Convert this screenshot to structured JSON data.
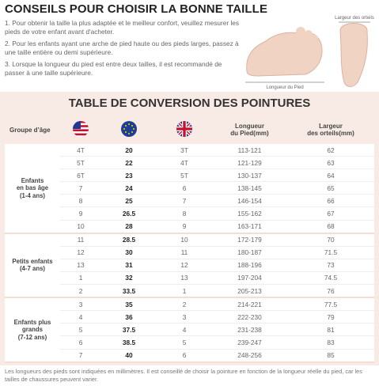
{
  "header": {
    "title": "CONSEILS POUR CHOISIR LA BONNE TAILLE",
    "tips": [
      "1. Pour obtenir la taille la plus adaptée et le meilleur confort, veuillez mesurer les pieds de votre enfant avant d'acheter.",
      "2. Pour les enfants ayant une arche de pied haute ou des pieds larges, passez à une taille entière ou demi supérieure.",
      "3. Lorsque la longueur du pied est entre deux tailles, il est recommandé de passer à une taille supérieure."
    ],
    "diagram": {
      "length_label": "Longueur du Pied",
      "width_label": "Largeur des orteils"
    }
  },
  "table": {
    "title": "TABLE DE CONVERSION DES POINTURES",
    "headers": {
      "group": "Groupe d’âge",
      "length": "Longueur\ndu Pied(mm)",
      "width": "Largeur\ndes orteils(mm)"
    },
    "groups": [
      {
        "label": "Enfants\nen bas âge\n(1-4 ans)",
        "rows": [
          [
            "4T",
            "20",
            "3T",
            "113-121",
            "62"
          ],
          [
            "5T",
            "22",
            "4T",
            "121-129",
            "63"
          ],
          [
            "6T",
            "23",
            "5T",
            "130-137",
            "64"
          ],
          [
            "7",
            "24",
            "6",
            "138-145",
            "65"
          ],
          [
            "8",
            "25",
            "7",
            "146-154",
            "66"
          ],
          [
            "9",
            "26.5",
            "8",
            "155-162",
            "67"
          ],
          [
            "10",
            "28",
            "9",
            "163-171",
            "68"
          ]
        ]
      },
      {
        "label": "Petits enfants\n(4-7 ans)",
        "rows": [
          [
            "11",
            "28.5",
            "10",
            "172-179",
            "70"
          ],
          [
            "12",
            "30",
            "11",
            "180-187",
            "71.5"
          ],
          [
            "13",
            "31",
            "12",
            "188-196",
            "73"
          ],
          [
            "1",
            "32",
            "13",
            "197-204",
            "74.5"
          ],
          [
            "2",
            "33.5",
            "1",
            "205-213",
            "76"
          ]
        ]
      },
      {
        "label": "Enfants plus\ngrands\n(7-12 ans)",
        "rows": [
          [
            "3",
            "35",
            "2",
            "214-221",
            "77.5"
          ],
          [
            "4",
            "36",
            "3",
            "222-230",
            "79"
          ],
          [
            "5",
            "37.5",
            "4",
            "231-238",
            "81"
          ],
          [
            "6",
            "38.5",
            "5",
            "239-247",
            "83"
          ],
          [
            "7",
            "40",
            "6",
            "248-256",
            "85"
          ]
        ]
      }
    ]
  },
  "footer": {
    "note": "Les longueurs des pieds sont indiquées en millimètres. Il est conseillé de choisir la pointure en fonction de la longueur réelle du pied, car les tailles de chaussures peuvent varier."
  }
}
